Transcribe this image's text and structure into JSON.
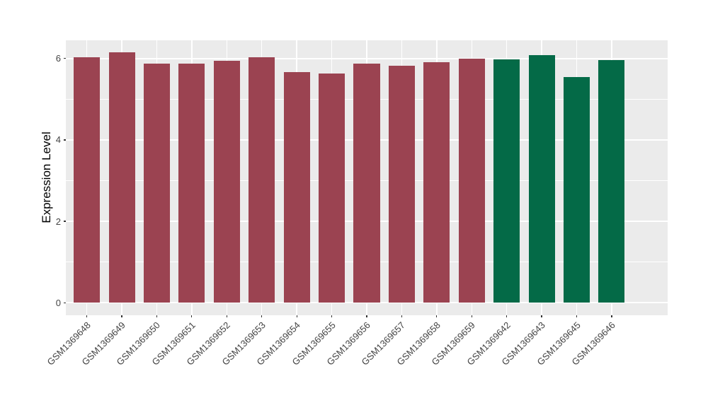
{
  "chart_data": {
    "type": "bar",
    "title": "",
    "xlabel": "",
    "ylabel": "Expression Level",
    "categories": [
      "GSM1369648",
      "GSM1369649",
      "GSM1369650",
      "GSM1369651",
      "GSM1369652",
      "GSM1369653",
      "GSM1369654",
      "GSM1369655",
      "GSM1369656",
      "GSM1369657",
      "GSM1369658",
      "GSM1369659",
      "GSM1369642",
      "GSM1369643",
      "GSM1369645",
      "GSM1369646"
    ],
    "values": [
      6.03,
      6.15,
      5.88,
      5.88,
      5.95,
      6.04,
      5.66,
      5.64,
      5.87,
      5.82,
      5.91,
      6.0,
      5.98,
      6.09,
      5.55,
      5.96
    ],
    "bar_colors": [
      "#9B4351",
      "#9B4351",
      "#9B4351",
      "#9B4351",
      "#9B4351",
      "#9B4351",
      "#9B4351",
      "#9B4351",
      "#9B4351",
      "#9B4351",
      "#9B4351",
      "#9B4351",
      "#046A47",
      "#046A47",
      "#046A47",
      "#046A47"
    ],
    "yticks": [
      0,
      2,
      4,
      6
    ],
    "yticks_minor": [
      1,
      3,
      5
    ],
    "ylim": [
      -0.31,
      6.45
    ],
    "baseline": 0,
    "bar_width_frac": 0.75,
    "grid": "on",
    "legend_position": "none",
    "style": {
      "figure_bg": "#FFFFFF",
      "panel_bg": "#EBEBEB",
      "grid_color": "#FFFFFF",
      "tick_mark_color": "#333333",
      "tick_label_color": "#444444",
      "axis_title_color": "#000000"
    }
  }
}
